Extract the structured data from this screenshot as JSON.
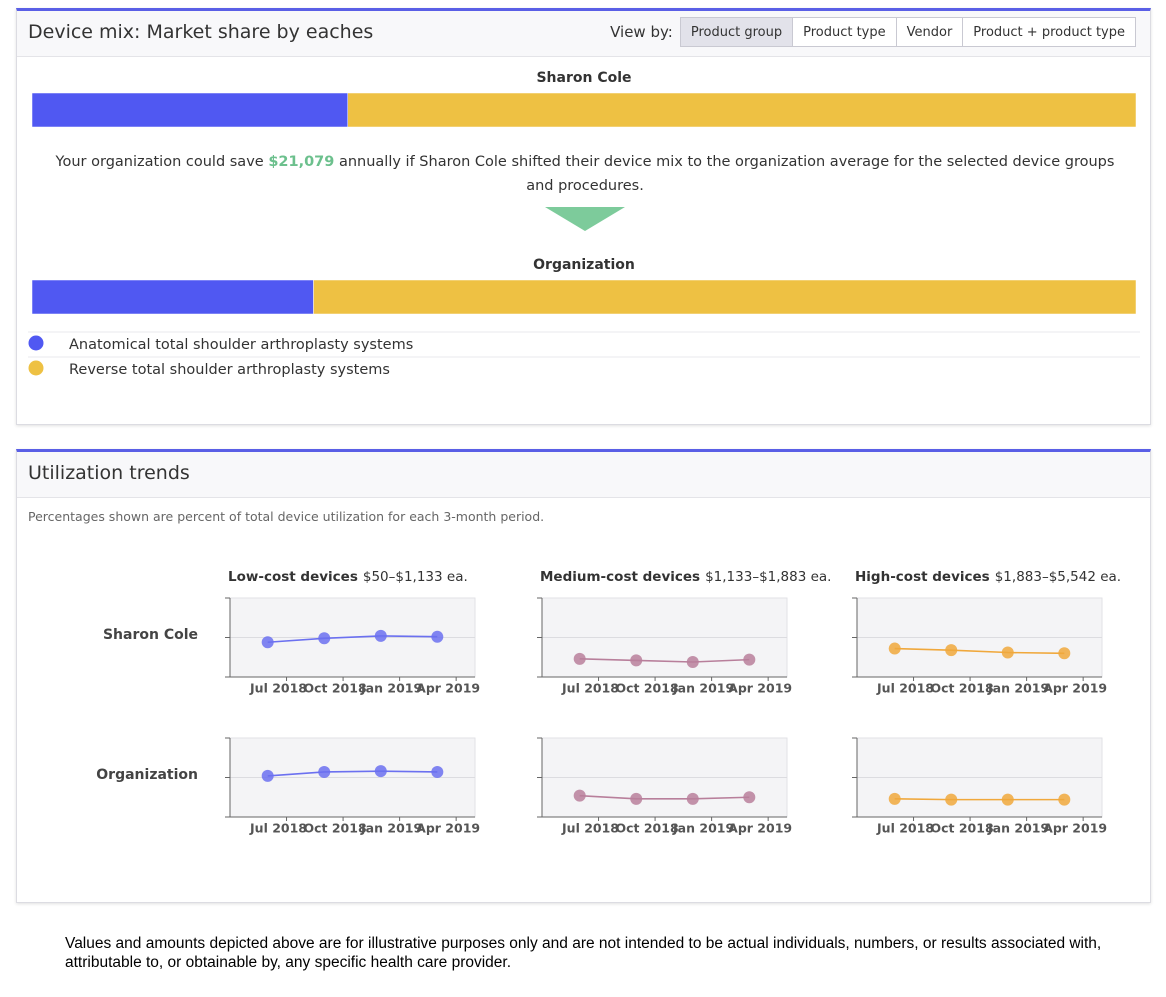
{
  "device_mix": {
    "title": "Device mix: Market share by eaches",
    "view_by_label": "View by:",
    "view_by_options": [
      "Product group",
      "Product type",
      "Vendor",
      "Product + product type"
    ],
    "selected_option": 0,
    "savings_text": {
      "before": "Your organization could save ",
      "amount": "$21,079",
      "after": " annually if Sharon Cole shifted their device mix to the organization average for the selected device groups and procedures."
    },
    "chart_data": {
      "type": "stacked-bar",
      "orientation": "horizontal",
      "xlim": [
        0,
        100
      ],
      "categories": [
        "Sharon Cole",
        "Organization"
      ],
      "series": [
        {
          "name": "Anatomical total shoulder arthroplasty systems",
          "color": "#5058f2",
          "values": [
            28.6,
            25.5
          ]
        },
        {
          "name": "Reverse total shoulder arthroplasty systems",
          "color": "#eec143",
          "values": [
            71.4,
            74.5
          ]
        }
      ]
    }
  },
  "utilization": {
    "title": "Utilization trends",
    "note": "Percentages shown are percent of total device utilization for each 3-month period.",
    "rows": [
      "Sharon Cole",
      "Organization"
    ],
    "columns": [
      {
        "title": "Low-cost devices",
        "subtitle": "$50–$1,133 ea."
      },
      {
        "title": "Medium-cost devices",
        "subtitle": "$1,133–$1,883 ea."
      },
      {
        "title": "High-cost devices",
        "subtitle": "$1,883–$5,542 ea."
      }
    ],
    "chart_data": [
      {
        "type": "line",
        "color": "#6b70f0",
        "x": [
          "2018-06",
          "2018-09",
          "2018-12",
          "2019-03"
        ],
        "values": [
          44,
          49,
          52,
          51
        ],
        "xlim": [
          "2018-04",
          "2019-05"
        ],
        "ylim": [
          0,
          100
        ],
        "yticks": [
          0,
          50,
          100
        ],
        "xticks": [
          {
            "value": "2018-07",
            "label": "Jul 2018"
          },
          {
            "value": "2018-10",
            "label": "Oct 2018"
          },
          {
            "value": "2019-01",
            "label": "Jan 2019"
          },
          {
            "value": "2019-04",
            "label": "Apr 2019"
          }
        ]
      },
      {
        "type": "line",
        "color": "#b87f9b",
        "x": [
          "2018-06",
          "2018-09",
          "2018-12",
          "2019-03"
        ],
        "values": [
          23,
          21,
          19,
          22
        ],
        "xlim": [
          "2018-04",
          "2019-05"
        ],
        "ylim": [
          0,
          100
        ],
        "yticks": [
          0,
          50,
          100
        ],
        "xticks": [
          {
            "value": "2018-07",
            "label": "Jul 2018"
          },
          {
            "value": "2018-10",
            "label": "Oct 2018"
          },
          {
            "value": "2019-01",
            "label": "Jan 2019"
          },
          {
            "value": "2019-04",
            "label": "Apr 2019"
          }
        ]
      },
      {
        "type": "line",
        "color": "#f0a83c",
        "x": [
          "2018-06",
          "2018-09",
          "2018-12",
          "2019-03"
        ],
        "values": [
          36,
          34,
          31,
          30
        ],
        "xlim": [
          "2018-04",
          "2019-05"
        ],
        "ylim": [
          0,
          100
        ],
        "yticks": [
          0,
          50,
          100
        ],
        "xticks": [
          {
            "value": "2018-07",
            "label": "Jul 2018"
          },
          {
            "value": "2018-10",
            "label": "Oct 2018"
          },
          {
            "value": "2019-01",
            "label": "Jan 2019"
          },
          {
            "value": "2019-04",
            "label": "Apr 2019"
          }
        ]
      },
      {
        "type": "line",
        "color": "#6b70f0",
        "x": [
          "2018-06",
          "2018-09",
          "2018-12",
          "2019-03"
        ],
        "values": [
          52,
          57,
          58,
          57
        ],
        "xlim": [
          "2018-04",
          "2019-05"
        ],
        "ylim": [
          0,
          100
        ],
        "yticks": [
          0,
          50,
          100
        ],
        "xticks": [
          {
            "value": "2018-07",
            "label": "Jul 2018"
          },
          {
            "value": "2018-10",
            "label": "Oct 2018"
          },
          {
            "value": "2019-01",
            "label": "Jan 2019"
          },
          {
            "value": "2019-04",
            "label": "Apr 2019"
          }
        ]
      },
      {
        "type": "line",
        "color": "#b87f9b",
        "x": [
          "2018-06",
          "2018-09",
          "2018-12",
          "2019-03"
        ],
        "values": [
          27,
          23,
          23,
          25
        ],
        "xlim": [
          "2018-04",
          "2019-05"
        ],
        "ylim": [
          0,
          100
        ],
        "yticks": [
          0,
          50,
          100
        ],
        "xticks": [
          {
            "value": "2018-07",
            "label": "Jul 2018"
          },
          {
            "value": "2018-10",
            "label": "Oct 2018"
          },
          {
            "value": "2019-01",
            "label": "Jan 2019"
          },
          {
            "value": "2019-04",
            "label": "Apr 2019"
          }
        ]
      },
      {
        "type": "line",
        "color": "#f0a83c",
        "x": [
          "2018-06",
          "2018-09",
          "2018-12",
          "2019-03"
        ],
        "values": [
          23,
          22,
          22,
          22
        ],
        "xlim": [
          "2018-04",
          "2019-05"
        ],
        "ylim": [
          0,
          100
        ],
        "yticks": [
          0,
          50,
          100
        ],
        "xticks": [
          {
            "value": "2018-07",
            "label": "Jul 2018"
          },
          {
            "value": "2018-10",
            "label": "Oct 2018"
          },
          {
            "value": "2019-01",
            "label": "Jan 2019"
          },
          {
            "value": "2019-04",
            "label": "Apr 2019"
          }
        ]
      }
    ]
  },
  "disclaimer": "Values and amounts depicted above are for illustrative purposes only and are not intended to be actual individuals, numbers, or results associated with, attributable to, or obtainable by, any specific health care provider."
}
